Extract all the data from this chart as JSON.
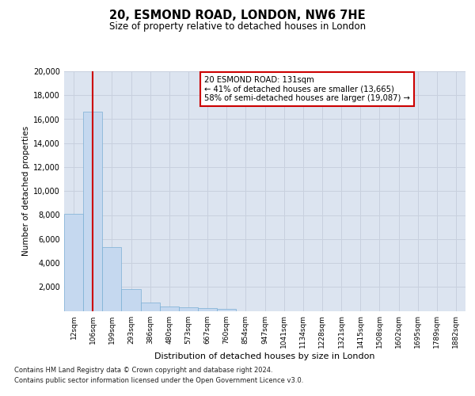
{
  "title_line1": "20, ESMOND ROAD, LONDON, NW6 7HE",
  "title_line2": "Size of property relative to detached houses in London",
  "xlabel": "Distribution of detached houses by size in London",
  "ylabel": "Number of detached properties",
  "categories": [
    "12sqm",
    "106sqm",
    "199sqm",
    "293sqm",
    "386sqm",
    "480sqm",
    "573sqm",
    "667sqm",
    "760sqm",
    "854sqm",
    "947sqm",
    "1041sqm",
    "1134sqm",
    "1228sqm",
    "1321sqm",
    "1415sqm",
    "1508sqm",
    "1602sqm",
    "1695sqm",
    "1789sqm",
    "1882sqm"
  ],
  "values": [
    8100,
    16600,
    5300,
    1850,
    700,
    370,
    270,
    210,
    190,
    0,
    0,
    0,
    0,
    0,
    0,
    0,
    0,
    0,
    0,
    0,
    0
  ],
  "bar_color": "#c5d8ef",
  "bar_edge_color": "#7aafd4",
  "vline_x": 1.0,
  "vline_color": "#cc0000",
  "annotation_text": "20 ESMOND ROAD: 131sqm\n← 41% of detached houses are smaller (13,665)\n58% of semi-detached houses are larger (19,087) →",
  "annotation_box_facecolor": "#ffffff",
  "annotation_box_edgecolor": "#cc0000",
  "ylim": [
    0,
    20000
  ],
  "yticks": [
    0,
    2000,
    4000,
    6000,
    8000,
    10000,
    12000,
    14000,
    16000,
    18000,
    20000
  ],
  "grid_color": "#c8d0de",
  "plot_bg_color": "#dce4f0",
  "footer_line1": "Contains HM Land Registry data © Crown copyright and database right 2024.",
  "footer_line2": "Contains public sector information licensed under the Open Government Licence v3.0."
}
